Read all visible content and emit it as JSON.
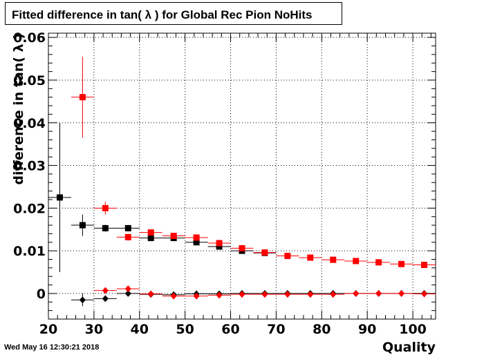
{
  "title": "Fitted difference in tan( λ ) for Global Rec Pion NoHits",
  "timestamp": "Wed May 16 12:30:21 2018",
  "chart_data": {
    "type": "scatter",
    "title": "Fitted difference in tan( λ ) for Global Rec Pion NoHits",
    "xlabel": "Quality",
    "ylabel": "difference in tan( λ )",
    "xlim": [
      20,
      105
    ],
    "ylim": [
      -0.006,
      0.061
    ],
    "x_ticks": [
      20,
      30,
      40,
      50,
      60,
      70,
      80,
      90,
      100
    ],
    "x_tick_labels": [
      "20",
      "30",
      "40",
      "50",
      "60",
      "70",
      "80",
      "90",
      "100"
    ],
    "y_ticks": [
      0,
      0.01,
      0.02,
      0.03,
      0.04,
      0.05,
      0.06
    ],
    "y_tick_labels": [
      "0",
      "0.01",
      "0.02",
      "0.03",
      "0.04",
      "0.05",
      "0.06"
    ],
    "grid": true,
    "x_bin_half_width": 2.5,
    "series": [
      {
        "marker": "square",
        "color": "#000000",
        "points": [
          {
            "x": 22.5,
            "y": 0.0225,
            "err": 0.0175
          },
          {
            "x": 27.5,
            "y": 0.016,
            "err": 0.0025
          },
          {
            "x": 32.5,
            "y": 0.0153,
            "err": 0.0008
          },
          {
            "x": 37.5,
            "y": 0.0153,
            "err": 0.0006
          },
          {
            "x": 42.5,
            "y": 0.013,
            "err": 0.0004
          },
          {
            "x": 47.5,
            "y": 0.013,
            "err": 0.0003
          },
          {
            "x": 52.5,
            "y": 0.012,
            "err": 0.0003
          },
          {
            "x": 57.5,
            "y": 0.011,
            "err": 0.0003
          },
          {
            "x": 62.5,
            "y": 0.01,
            "err": 0.0002
          },
          {
            "x": 67.5,
            "y": 0.0095,
            "err": 0.0002
          }
        ]
      },
      {
        "marker": "square",
        "color": "#ff0000",
        "points": [
          {
            "x": 27.5,
            "y": 0.046,
            "err": 0.0095
          },
          {
            "x": 32.5,
            "y": 0.02,
            "err": 0.0015
          },
          {
            "x": 37.5,
            "y": 0.0132,
            "err": 0.0008
          },
          {
            "x": 42.5,
            "y": 0.0143,
            "err": 0.0005
          },
          {
            "x": 47.5,
            "y": 0.0135,
            "err": 0.0004
          },
          {
            "x": 52.5,
            "y": 0.0131,
            "err": 0.0003
          },
          {
            "x": 57.5,
            "y": 0.0118,
            "err": 0.0003
          },
          {
            "x": 62.5,
            "y": 0.0106,
            "err": 0.0003
          },
          {
            "x": 67.5,
            "y": 0.0096,
            "err": 0.0002
          },
          {
            "x": 72.5,
            "y": 0.0088,
            "err": 0.0002
          },
          {
            "x": 77.5,
            "y": 0.0084,
            "err": 0.0002
          },
          {
            "x": 82.5,
            "y": 0.0079,
            "err": 0.0002
          },
          {
            "x": 87.5,
            "y": 0.0076,
            "err": 0.0002
          },
          {
            "x": 92.5,
            "y": 0.0073,
            "err": 0.0002
          },
          {
            "x": 97.5,
            "y": 0.0069,
            "err": 0.0002
          },
          {
            "x": 102.5,
            "y": 0.0067,
            "err": 0.0002
          }
        ]
      },
      {
        "marker": "diamond",
        "color": "#000000",
        "points": [
          {
            "x": 27.5,
            "y": -0.0015,
            "err": 0.0015
          },
          {
            "x": 32.5,
            "y": -0.0012,
            "err": 0.0005
          },
          {
            "x": 37.5,
            "y": 0.0,
            "err": 0.0003
          },
          {
            "x": 42.5,
            "y": -0.0002,
            "err": 0.0002
          },
          {
            "x": 47.5,
            "y": -0.0003,
            "err": 0.0002
          },
          {
            "x": 52.5,
            "y": -0.0001,
            "err": 0.0002
          },
          {
            "x": 57.5,
            "y": -0.0001,
            "err": 0.0002
          },
          {
            "x": 62.5,
            "y": 0.0,
            "err": 0.0001
          },
          {
            "x": 67.5,
            "y": 0.0,
            "err": 0.0001
          },
          {
            "x": 72.5,
            "y": 0.0,
            "err": 0.0001
          },
          {
            "x": 77.5,
            "y": 0.0,
            "err": 0.0001
          },
          {
            "x": 82.5,
            "y": 0.0,
            "err": 0.0001
          },
          {
            "x": 87.5,
            "y": 0.0,
            "err": 0.0001
          },
          {
            "x": 92.5,
            "y": 0.0,
            "err": 0.0001
          },
          {
            "x": 97.5,
            "y": 0.0,
            "err": 0.0001
          },
          {
            "x": 102.5,
            "y": 0.0,
            "err": 0.0001
          }
        ]
      },
      {
        "marker": "diamond",
        "color": "#ff0000",
        "points": [
          {
            "x": 32.5,
            "y": 0.0007,
            "err": 0.0005
          },
          {
            "x": 37.5,
            "y": 0.0011,
            "err": 0.0003
          },
          {
            "x": 42.5,
            "y": -0.0001,
            "err": 0.0002
          },
          {
            "x": 47.5,
            "y": -0.0006,
            "err": 0.0002
          },
          {
            "x": 52.5,
            "y": -0.0006,
            "err": 0.0002
          },
          {
            "x": 57.5,
            "y": -0.0004,
            "err": 0.0002
          },
          {
            "x": 62.5,
            "y": -0.0002,
            "err": 0.0001
          },
          {
            "x": 67.5,
            "y": -0.0002,
            "err": 0.0001
          },
          {
            "x": 72.5,
            "y": -0.0002,
            "err": 0.0001
          },
          {
            "x": 77.5,
            "y": -0.0002,
            "err": 0.0001
          },
          {
            "x": 82.5,
            "y": -0.0002,
            "err": 0.0001
          },
          {
            "x": 87.5,
            "y": 0.0,
            "err": 0.0001
          },
          {
            "x": 92.5,
            "y": 0.0,
            "err": 0.0001
          },
          {
            "x": 97.5,
            "y": 0.0,
            "err": 0.0001
          },
          {
            "x": 102.5,
            "y": -0.0001,
            "err": 0.0001
          }
        ]
      }
    ]
  }
}
